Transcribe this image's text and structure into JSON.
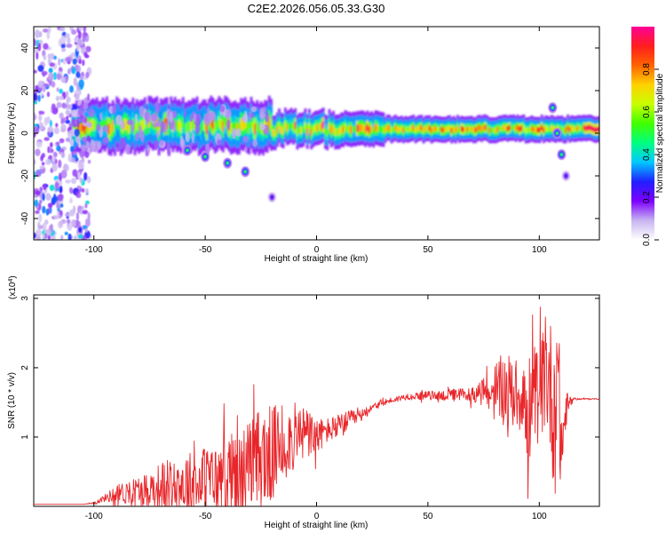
{
  "page": {
    "title": "C2E2.2026.056.05.33.G30"
  },
  "chart_data": [
    {
      "type": "heatmap",
      "title": "C2E2.2026.056.05.33.G30",
      "xlabel": "Height of straight line (km)",
      "ylabel": "Frequency (Hz)",
      "xlim": [
        -127,
        127
      ],
      "ylim": [
        -50,
        50
      ],
      "xticks": [
        -100,
        -50,
        0,
        50,
        100
      ],
      "yticks": [
        -40,
        -20,
        0,
        20,
        40
      ],
      "colorbar": {
        "label": "Normalized spectral amplitude",
        "range": [
          0,
          1
        ],
        "ticks": [
          0.0,
          0.2,
          0.4,
          0.6,
          0.8
        ],
        "tick_labels": [
          "0.0",
          "0.2",
          "0.4",
          "0.6",
          "0.8"
        ],
        "colormap": [
          "#ffffff",
          "#c8b4f0",
          "#7d00ff",
          "#2020ff",
          "#00c8ff",
          "#00ff80",
          "#40ff00",
          "#c8ff00",
          "#ffd200",
          "#ff6400",
          "#ff1e1e",
          "#ff0096"
        ]
      },
      "features": [
        {
          "name": "main band",
          "x_range": [
            -110,
            127
          ],
          "freq_center": 2,
          "max_amplitude": 1.0
        },
        {
          "name": "scatter noise",
          "x_range": [
            -127,
            -102
          ],
          "freq_range": [
            -50,
            50
          ],
          "max_amplitude": 0.4
        },
        {
          "name": "downward branch",
          "points": [
            [
              -58,
              -8
            ],
            [
              -50,
              -11
            ],
            [
              -40,
              -14
            ],
            [
              -32,
              -18
            ],
            [
              -20,
              -30
            ]
          ],
          "max_amplitude": 0.5
        },
        {
          "name": "spike at 106",
          "points": [
            [
              106,
              12
            ],
            [
              108,
              0
            ],
            [
              110,
              -10
            ],
            [
              112,
              -20
            ]
          ],
          "max_amplitude": 0.5
        }
      ]
    },
    {
      "type": "line",
      "xlabel": "Height of straight line (km)",
      "ylabel": "SNR (10 * v/v)",
      "y_multiplier_label": "(x10",
      "y_multiplier_exp": "4",
      "y_multiplier_close": ")",
      "xlim": [
        -127,
        127
      ],
      "ylim": [
        0,
        3.05
      ],
      "xticks": [
        -100,
        -50,
        0,
        50,
        100
      ],
      "yticks": [
        1,
        2,
        3
      ],
      "color": "#e8262a",
      "series": [
        {
          "x": [
            -127,
            -105,
            -100,
            -95,
            -90,
            -85,
            -80,
            -75,
            -70,
            -65,
            -60,
            -55,
            -50,
            -45,
            -40,
            -35,
            -30,
            -25,
            -20,
            -15,
            -10,
            -5,
            0,
            5,
            10,
            15,
            20,
            25,
            30,
            40,
            50,
            60,
            70,
            75,
            80,
            85,
            90,
            93,
            95,
            98,
            100,
            103,
            105,
            107,
            108,
            110,
            112,
            115,
            120,
            127
          ],
          "y": [
            0.03,
            0.03,
            0.05,
            0.12,
            0.18,
            0.2,
            0.22,
            0.25,
            0.28,
            0.3,
            0.33,
            0.3,
            0.4,
            0.35,
            0.5,
            0.45,
            0.55,
            0.65,
            0.75,
            0.9,
            1.0,
            1.05,
            1.0,
            1.1,
            1.15,
            1.25,
            1.3,
            1.45,
            1.5,
            1.58,
            1.6,
            1.6,
            1.62,
            1.65,
            1.65,
            1.7,
            1.6,
            1.7,
            0.7,
            1.65,
            1.6,
            1.95,
            1.7,
            1.4,
            2.2,
            0.75,
            1.4,
            1.55,
            1.55,
            1.55
          ],
          "envelope": [
            0.0,
            0.0,
            0.02,
            0.06,
            0.14,
            0.2,
            0.25,
            0.3,
            0.4,
            0.45,
            0.55,
            0.55,
            0.55,
            0.6,
            0.65,
            0.7,
            0.8,
            0.9,
            0.8,
            0.6,
            0.55,
            0.45,
            0.3,
            0.2,
            0.2,
            0.15,
            0.1,
            0.08,
            0.05,
            0.05,
            0.07,
            0.1,
            0.12,
            0.22,
            0.5,
            0.6,
            0.6,
            0.7,
            1.1,
            0.8,
            0.8,
            0.9,
            1.1,
            1.6,
            0.8,
            1.2,
            0.3,
            0.02,
            0.01,
            0.01
          ]
        }
      ]
    }
  ]
}
